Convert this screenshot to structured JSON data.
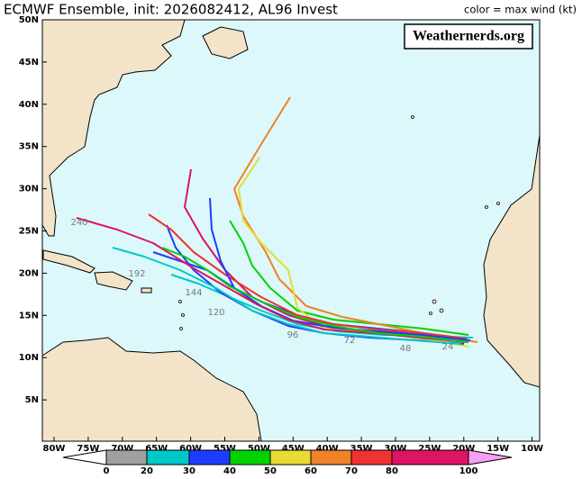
{
  "header": {
    "title": "ECMWF Ensemble, init: 2026082412, AL96 Invest",
    "legend_note": "color = max wind (kt)"
  },
  "watermark": "Weathernerds.org",
  "map": {
    "lat_labels": [
      "50N",
      "45N",
      "40N",
      "35N",
      "30N",
      "25N",
      "20N",
      "15N",
      "10N",
      "5N"
    ],
    "lon_labels": [
      "80W",
      "75W",
      "70W",
      "65W",
      "60W",
      "55W",
      "50W",
      "45W",
      "40W",
      "35W",
      "30W",
      "25W",
      "20W",
      "15W",
      "10W"
    ],
    "track_labels": [
      "240",
      "192",
      "144",
      "120",
      "96",
      "72",
      "48",
      "24"
    ]
  },
  "colorbar": {
    "ticks": [
      0,
      20,
      30,
      40,
      50,
      60,
      70,
      80,
      100
    ],
    "colors": [
      "#a0a0a0",
      "#00c8c8",
      "#1e3cff",
      "#00d200",
      "#e6dc32",
      "#f08228",
      "#f03232",
      "#dc1464"
    ]
  }
}
